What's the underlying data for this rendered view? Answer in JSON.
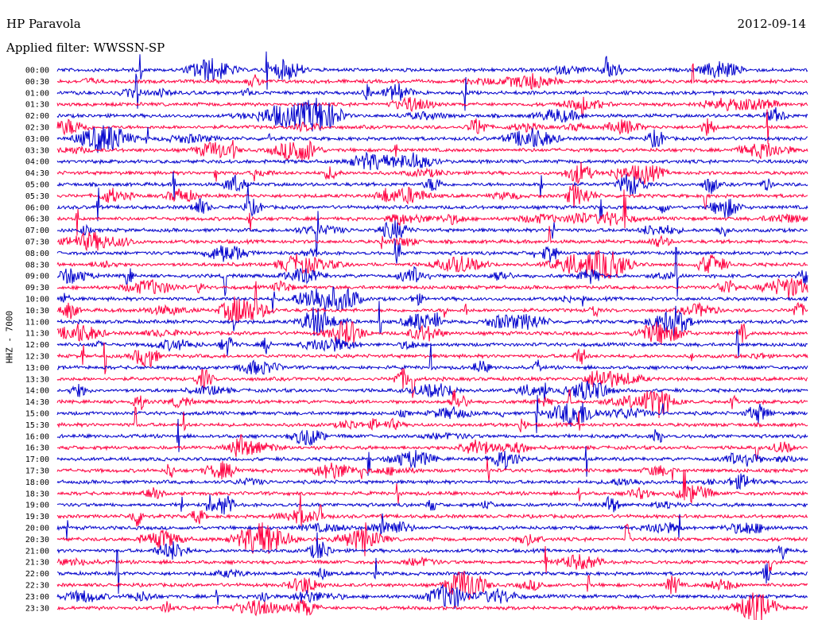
{
  "header": {
    "station": "HP Paravola",
    "date": "2012-09-14",
    "filter_label": "Applied filter: WWSSN-SP"
  },
  "chart_data": {
    "type": "line",
    "title": "HP Paravola",
    "date": "2012-09-14",
    "filter": "Applied filter: WWSSN-SP",
    "ylabel": "HHZ - 7000",
    "series_colors": [
      "#0000cc",
      "#ff0040"
    ],
    "row_interval_minutes": 30,
    "rows": [
      "00:00",
      "00:30",
      "01:00",
      "01:30",
      "02:00",
      "02:30",
      "03:00",
      "03:30",
      "04:00",
      "04:30",
      "05:00",
      "05:30",
      "06:00",
      "06:30",
      "07:00",
      "07:30",
      "08:00",
      "08:30",
      "09:00",
      "09:30",
      "10:00",
      "10:30",
      "11:00",
      "11:30",
      "12:00",
      "12:30",
      "13:00",
      "13:30",
      "14:00",
      "14:30",
      "15:00",
      "15:30",
      "16:00",
      "16:30",
      "17:00",
      "17:30",
      "18:00",
      "18:30",
      "19:00",
      "19:30",
      "20:00",
      "20:30",
      "21:00",
      "21:30",
      "22:00",
      "22:30",
      "23:00",
      "23:30"
    ]
  }
}
